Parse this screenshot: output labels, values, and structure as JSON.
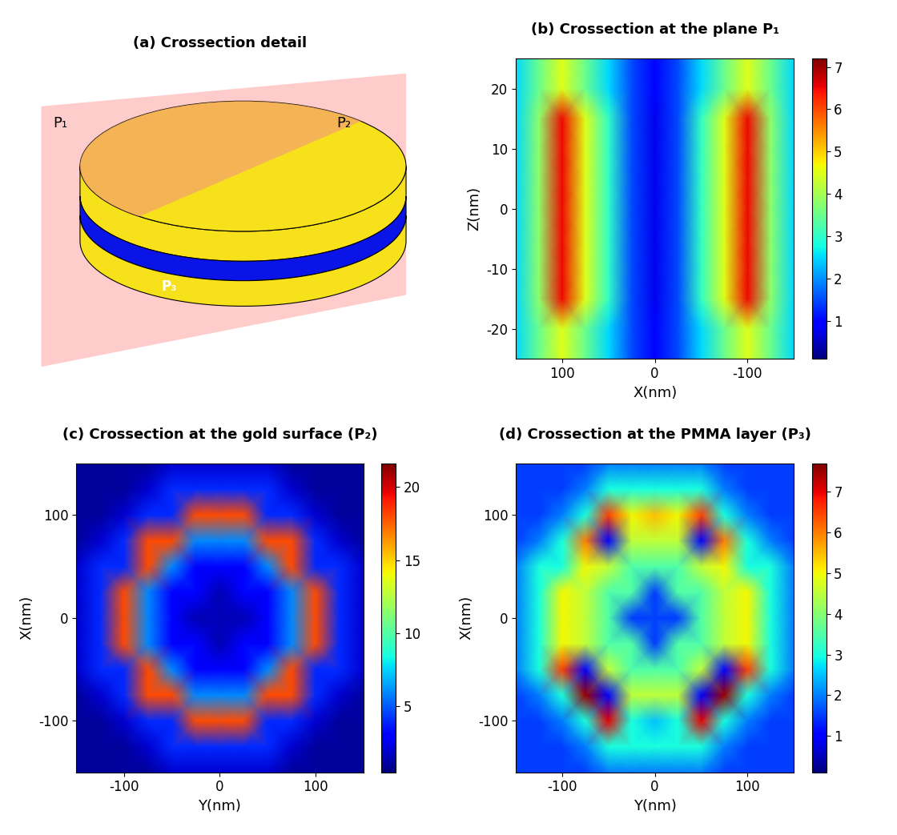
{
  "diagram": {
    "title": "(a) Crossection detail",
    "labels": [
      "P₁",
      "P₂",
      "P₃"
    ]
  },
  "chart_data": [
    {
      "type": "heatmap",
      "title": "(b) Crossection at the plane P₁",
      "x_label": "X(nm)",
      "y_label": "Z(nm)",
      "x": [
        -150,
        -125,
        -100,
        -75,
        -50,
        -25,
        0,
        25,
        50,
        75,
        100,
        125,
        150
      ],
      "y": [
        -25,
        -20,
        -15,
        -10,
        -5,
        0,
        5,
        10,
        15,
        20,
        25
      ],
      "xlim": [
        150,
        -150
      ],
      "xticks": [
        100,
        0,
        -100
      ],
      "ylim": [
        -25,
        25
      ],
      "yticks": [
        -20,
        -10,
        0,
        10,
        20
      ],
      "cells": [
        [
          2.5,
          3.5,
          4.5,
          3.5,
          2.5,
          1.5,
          1.0,
          1.5,
          2.5,
          3.5,
          4.5,
          3.5,
          2.5
        ],
        [
          2.5,
          3.5,
          4.5,
          3.5,
          2.5,
          1.5,
          1.0,
          1.5,
          2.5,
          3.5,
          4.5,
          3.5,
          2.5
        ],
        [
          2.5,
          3.8,
          6.5,
          4.5,
          3.0,
          1.5,
          0.8,
          1.5,
          3.0,
          4.5,
          6.5,
          3.8,
          2.5
        ],
        [
          2.5,
          3.8,
          6.5,
          4.5,
          3.0,
          1.5,
          0.8,
          1.5,
          3.0,
          4.5,
          6.5,
          3.8,
          2.5
        ],
        [
          2.5,
          3.8,
          6.5,
          4.5,
          3.0,
          1.5,
          0.8,
          1.5,
          3.0,
          4.5,
          6.5,
          3.8,
          2.5
        ],
        [
          2.5,
          3.8,
          6.5,
          4.5,
          3.0,
          1.5,
          0.8,
          1.5,
          3.0,
          4.5,
          6.5,
          3.8,
          2.5
        ],
        [
          2.5,
          3.8,
          6.5,
          4.5,
          3.0,
          1.5,
          0.8,
          1.5,
          3.0,
          4.5,
          6.5,
          3.8,
          2.5
        ],
        [
          2.5,
          3.8,
          6.5,
          4.5,
          3.0,
          1.5,
          0.8,
          1.5,
          3.0,
          4.5,
          6.5,
          3.8,
          2.5
        ],
        [
          2.5,
          3.8,
          6.5,
          4.5,
          3.0,
          1.5,
          0.8,
          1.5,
          3.0,
          4.5,
          6.5,
          3.8,
          2.5
        ],
        [
          2.5,
          3.5,
          4.5,
          3.5,
          2.5,
          1.5,
          1.0,
          1.5,
          2.5,
          3.5,
          4.5,
          3.5,
          2.5
        ],
        [
          2.5,
          3.5,
          4.5,
          3.5,
          2.5,
          1.5,
          1.0,
          1.5,
          2.5,
          3.5,
          4.5,
          3.5,
          2.5
        ]
      ],
      "colorbar_range": [
        0.1,
        7.2
      ],
      "colorbar_ticks": [
        1,
        2,
        3,
        4,
        5,
        6,
        7
      ]
    },
    {
      "type": "heatmap",
      "title": "(c) Crossection at the gold surface (P₂)",
      "x_label": "Y(nm)",
      "y_label": "X(nm)",
      "x": [
        -150,
        -125,
        -100,
        -75,
        -50,
        -25,
        0,
        25,
        50,
        75,
        100,
        125,
        150
      ],
      "y": [
        -150,
        -125,
        -100,
        -75,
        -50,
        -25,
        0,
        25,
        50,
        75,
        100,
        125,
        150
      ],
      "xlim": [
        -150,
        150
      ],
      "xticks": [
        -100,
        0,
        100
      ],
      "ylim": [
        -150,
        150
      ],
      "yticks": [
        -100,
        0,
        100
      ],
      "cells": [
        [
          1,
          1,
          1,
          1,
          2,
          2,
          2,
          2,
          2,
          1,
          1,
          1,
          1
        ],
        [
          1,
          1,
          1,
          2,
          4,
          4,
          4,
          4,
          4,
          2,
          1,
          1,
          1
        ],
        [
          1,
          1,
          2,
          4,
          4,
          18,
          18,
          18,
          4,
          4,
          2,
          1,
          1
        ],
        [
          1,
          2,
          4,
          18,
          18,
          6,
          6,
          6,
          18,
          18,
          4,
          2,
          1
        ],
        [
          2,
          4,
          4,
          18,
          6,
          3,
          3,
          3,
          6,
          18,
          4,
          4,
          2
        ],
        [
          2,
          4,
          18,
          6,
          3,
          3,
          1.5,
          3,
          3,
          6,
          18,
          4,
          2
        ],
        [
          2,
          4,
          18,
          6,
          3,
          1.5,
          1.5,
          1.5,
          3,
          6,
          18,
          4,
          2
        ],
        [
          2,
          4,
          18,
          6,
          3,
          3,
          1.5,
          3,
          3,
          6,
          18,
          4,
          2
        ],
        [
          2,
          4,
          4,
          18,
          6,
          3,
          3,
          3,
          6,
          18,
          4,
          4,
          2
        ],
        [
          1,
          2,
          4,
          18,
          18,
          6,
          6,
          6,
          18,
          18,
          4,
          2,
          1
        ],
        [
          1,
          1,
          2,
          4,
          4,
          18,
          18,
          18,
          4,
          4,
          2,
          1,
          1
        ],
        [
          1,
          1,
          1,
          2,
          4,
          4,
          4,
          4,
          4,
          2,
          1,
          1,
          1
        ],
        [
          1,
          1,
          1,
          1,
          2,
          2,
          2,
          2,
          2,
          1,
          1,
          1,
          1
        ]
      ],
      "colorbar_range": [
        0.5,
        21.6
      ],
      "colorbar_ticks": [
        5,
        10,
        15,
        20
      ]
    },
    {
      "type": "heatmap",
      "title": "(d) Crossection at the PMMA layer (P₃)",
      "x_label": "Y(nm)",
      "y_label": "X(nm)",
      "x": [
        -150,
        -125,
        -100,
        -75,
        -50,
        -25,
        0,
        25,
        50,
        75,
        100,
        125,
        150
      ],
      "y": [
        -150,
        -125,
        -100,
        -75,
        -50,
        -25,
        0,
        25,
        50,
        75,
        100,
        125,
        150
      ],
      "xlim": [
        -150,
        150
      ],
      "xticks": [
        -100,
        0,
        100
      ],
      "ylim": [
        -150,
        150
      ],
      "yticks": [
        -100,
        0,
        100
      ],
      "cells": [
        [
          1.5,
          1.5,
          1.5,
          1.5,
          2,
          2,
          2,
          2,
          2,
          1.5,
          1.5,
          1.5,
          1.5
        ],
        [
          1.5,
          1.5,
          1.5,
          2,
          3,
          3,
          3,
          3,
          3,
          2,
          1.5,
          1.5,
          1.5
        ],
        [
          1.5,
          1.5,
          2,
          3,
          7,
          3,
          2.5,
          3,
          7,
          3,
          2,
          1.5,
          1.5
        ],
        [
          1.5,
          2,
          3,
          7.5,
          1,
          4.5,
          4.5,
          4.5,
          1,
          7.5,
          3,
          2,
          1.5
        ],
        [
          2,
          3,
          6.5,
          1,
          4.5,
          3.5,
          3.5,
          3.5,
          4.5,
          1,
          6.5,
          3,
          2
        ],
        [
          2,
          3,
          5,
          4.5,
          3.5,
          3.5,
          1.5,
          3.5,
          3.5,
          4.5,
          5,
          3,
          2
        ],
        [
          2,
          3,
          5,
          4.5,
          3.5,
          1.5,
          1.5,
          1.5,
          3.5,
          4.5,
          5,
          3,
          2
        ],
        [
          2,
          3,
          5,
          4.5,
          3.5,
          3.5,
          1.5,
          3.5,
          3.5,
          4.5,
          5,
          3,
          2
        ],
        [
          2,
          3,
          3,
          5,
          4.5,
          3.5,
          3.5,
          3.5,
          4.5,
          5,
          3,
          3,
          2
        ],
        [
          1.5,
          2,
          3,
          6,
          1,
          4.5,
          4.5,
          4.5,
          1,
          6,
          3,
          2,
          1.5
        ],
        [
          1.5,
          1.5,
          2,
          3,
          6.5,
          5,
          5.5,
          5,
          6.5,
          3,
          2,
          1.5,
          1.5
        ],
        [
          1.5,
          1.5,
          1.5,
          2,
          3,
          3,
          3,
          3,
          3,
          2,
          1.5,
          1.5,
          1.5
        ],
        [
          1.5,
          1.5,
          1.5,
          1.5,
          2,
          2,
          2,
          2,
          2,
          1.5,
          1.5,
          1.5,
          1.5
        ]
      ],
      "colorbar_range": [
        0.1,
        7.7
      ],
      "colorbar_ticks": [
        1,
        2,
        3,
        4,
        5,
        6,
        7
      ]
    }
  ]
}
